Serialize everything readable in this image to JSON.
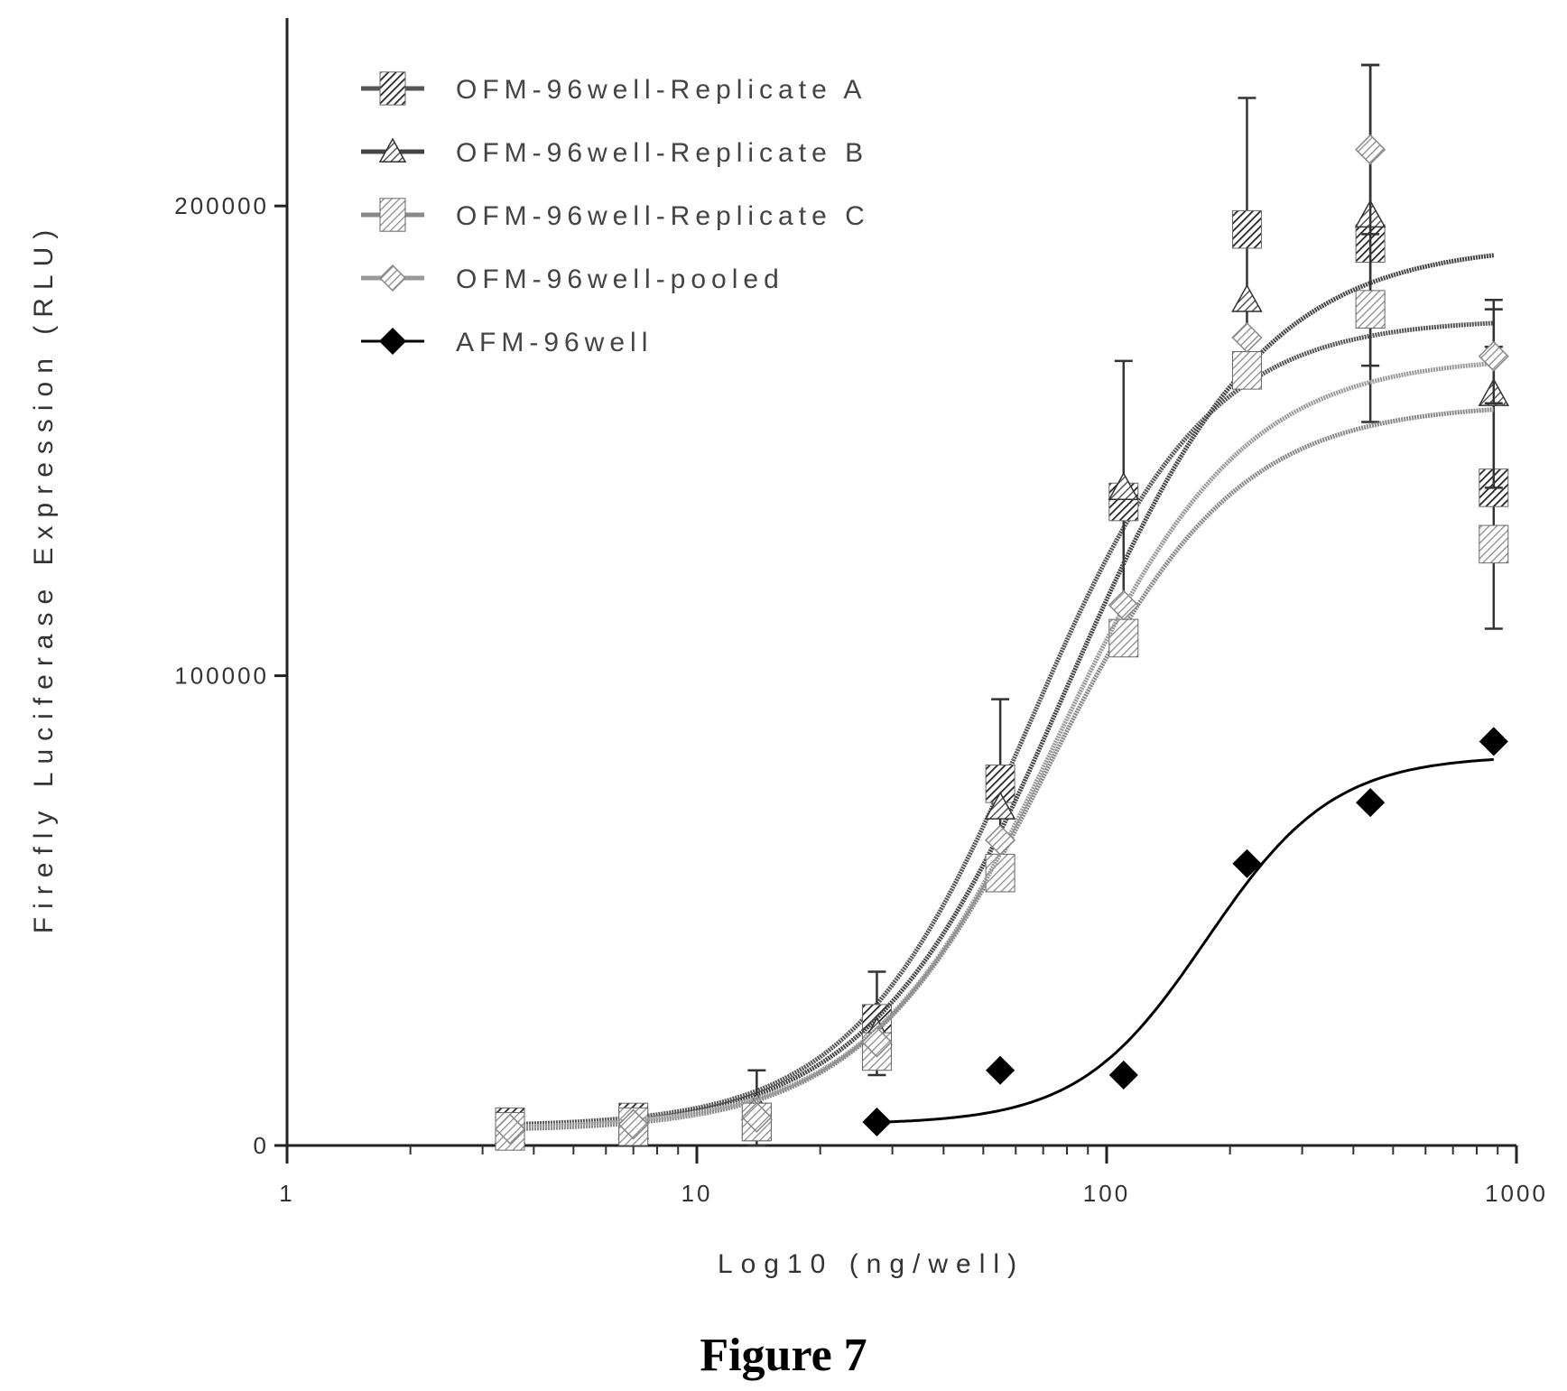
{
  "chart_data": {
    "type": "scatter",
    "title": "",
    "caption": "Figure 7",
    "xlabel": "Log10 (ng/well)",
    "ylabel": "Firefly Luciferase Expression (RLU)",
    "x_scale": "log",
    "xlim": [
      1,
      1000
    ],
    "ylim": [
      0,
      240000
    ],
    "x_ticks": [
      1,
      10,
      100,
      1000
    ],
    "x_tick_labels": [
      "1",
      "10",
      "100",
      "1000"
    ],
    "y_ticks": [
      0,
      100000,
      200000
    ],
    "y_tick_labels": [
      "0",
      "100000",
      "200000"
    ],
    "legend_position": "top-left",
    "series": [
      {
        "name": "OFM-96well-Replicate A",
        "marker": "hatched-square",
        "color": "#555555",
        "points": [
          {
            "x": 3.5,
            "y": 4000
          },
          {
            "x": 7,
            "y": 5000
          },
          {
            "x": 14,
            "y": 5000
          },
          {
            "x": 27.5,
            "y": 26000,
            "err": 11000
          },
          {
            "x": 55,
            "y": 77000,
            "err": 18000
          },
          {
            "x": 110,
            "y": 137000,
            "err": 30000
          },
          {
            "x": 220,
            "y": 195000,
            "err": 28000
          },
          {
            "x": 440,
            "y": 192000,
            "err": 38000
          },
          {
            "x": 880,
            "y": 140000,
            "err": 30000
          }
        ],
        "fit": {
          "bottom": 4000,
          "top": 176000,
          "ec50": 65,
          "hill": 2.0
        }
      },
      {
        "name": "OFM-96well-Replicate B",
        "marker": "triangle",
        "color": "#444444",
        "points": [
          {
            "x": 3.5,
            "y": 3000
          },
          {
            "x": 7,
            "y": 4000
          },
          {
            "x": 14,
            "y": 8000,
            "err": 8000
          },
          {
            "x": 27.5,
            "y": 24000
          },
          {
            "x": 55,
            "y": 72000
          },
          {
            "x": 110,
            "y": 140000
          },
          {
            "x": 220,
            "y": 180000
          },
          {
            "x": 440,
            "y": 198000,
            "err": 32000
          },
          {
            "x": 880,
            "y": 160000,
            "err": 20000
          }
        ],
        "fit": {
          "bottom": 3000,
          "top": 192000,
          "ec50": 80,
          "hill": 1.8
        }
      },
      {
        "name": "OFM-96well-Replicate C",
        "marker": "hatched-square-light",
        "color": "#888888",
        "points": [
          {
            "x": 3.5,
            "y": 3000
          },
          {
            "x": 7,
            "y": 4000
          },
          {
            "x": 14,
            "y": 5000
          },
          {
            "x": 27.5,
            "y": 20000
          },
          {
            "x": 55,
            "y": 58000
          },
          {
            "x": 110,
            "y": 108000
          },
          {
            "x": 220,
            "y": 165000
          },
          {
            "x": 440,
            "y": 178000
          },
          {
            "x": 880,
            "y": 128000
          }
        ],
        "fit": {
          "bottom": 3000,
          "top": 158000,
          "ec50": 72,
          "hill": 1.9
        }
      },
      {
        "name": "OFM-96well-pooled",
        "marker": "diamond-light",
        "color": "#999999",
        "points": [
          {
            "x": 3.5,
            "y": 3500
          },
          {
            "x": 7,
            "y": 4500
          },
          {
            "x": 14,
            "y": 6000
          },
          {
            "x": 27.5,
            "y": 22000
          },
          {
            "x": 55,
            "y": 65000
          },
          {
            "x": 110,
            "y": 115000
          },
          {
            "x": 220,
            "y": 172000
          },
          {
            "x": 440,
            "y": 212000,
            "err": 18000
          },
          {
            "x": 880,
            "y": 168000,
            "err": 10000
          }
        ],
        "fit": {
          "bottom": 3500,
          "top": 168000,
          "ec50": 75,
          "hill": 1.9
        }
      },
      {
        "name": "AFM-96well",
        "marker": "diamond",
        "color": "#000000",
        "points": [
          {
            "x": 27.5,
            "y": 5000
          },
          {
            "x": 55,
            "y": 16000
          },
          {
            "x": 110,
            "y": 15000
          },
          {
            "x": 220,
            "y": 60000
          },
          {
            "x": 440,
            "y": 73000
          },
          {
            "x": 880,
            "y": 86000
          }
        ],
        "fit": {
          "bottom": 4500,
          "top": 83000,
          "ec50": 175,
          "hill": 2.8
        }
      }
    ]
  }
}
